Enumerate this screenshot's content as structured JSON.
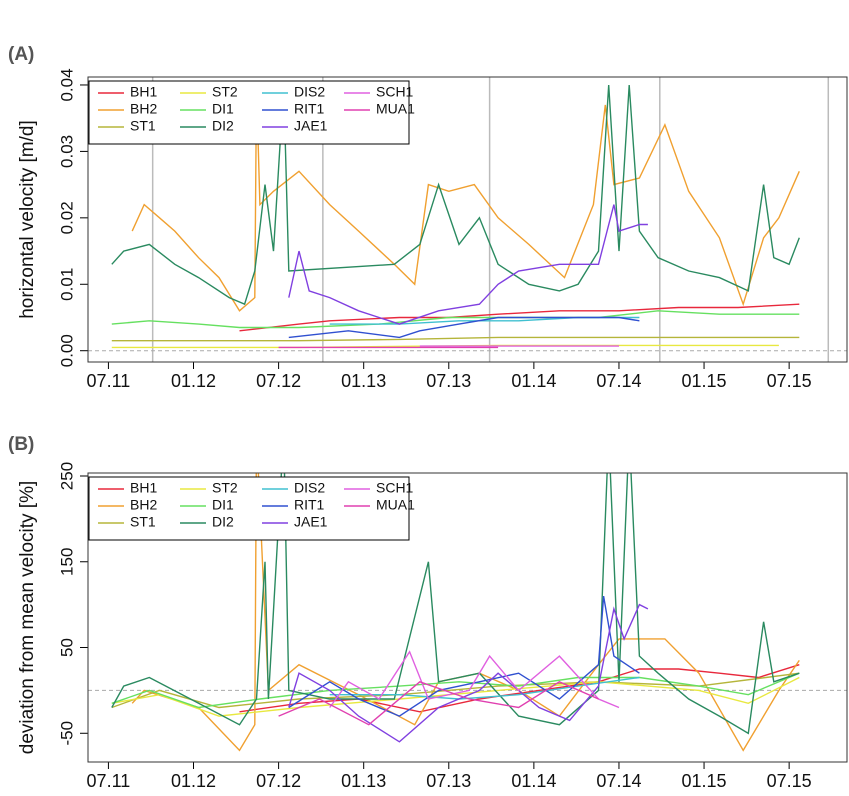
{
  "chart_data": [
    {
      "type": "line",
      "panel_label": "(A)",
      "y_label": "horizontal velocity [m/d]",
      "xlim": [
        2011.38,
        2015.84
      ],
      "ylim": [
        -0.0017,
        0.0412
      ],
      "xticks": [
        {
          "value": 2011.5,
          "label": "07.11"
        },
        {
          "value": 2012.0,
          "label": "01.12"
        },
        {
          "value": 2012.5,
          "label": "07.12"
        },
        {
          "value": 2013.0,
          "label": "01.13"
        },
        {
          "value": 2013.5,
          "label": "07.13"
        },
        {
          "value": 2014.0,
          "label": "01.14"
        },
        {
          "value": 2014.5,
          "label": "07.14"
        },
        {
          "value": 2015.0,
          "label": "01.15"
        },
        {
          "value": 2015.5,
          "label": "07.15"
        }
      ],
      "yticks": [
        {
          "value": 0,
          "label": "0.00"
        },
        0.01,
        0.02,
        0.03,
        0.04
      ],
      "vlines": [
        2011.76,
        2012.76,
        2013.74,
        2014.74,
        2015.73
      ],
      "zero_line": true,
      "legend": "topleft",
      "series": [
        {
          "name": "BH1",
          "color": "#e8283c",
          "x": [
            2012.27,
            2012.62,
            2012.8,
            2013.21,
            2013.5,
            2013.79,
            2014.15,
            2014.5,
            2014.85,
            2015.2,
            2015.56
          ],
          "values": [
            0.003,
            0.004,
            0.0045,
            0.005,
            0.005,
            0.0055,
            0.006,
            0.006,
            0.0065,
            0.0065,
            0.007
          ]
        },
        {
          "name": "BH2",
          "color": "#f0a030",
          "x": [
            2011.64,
            2011.71,
            2011.8,
            2011.89,
            2012.03,
            2012.15,
            2012.27,
            2012.36,
            2012.37,
            2012.39,
            2012.47,
            2012.62,
            2012.8,
            2012.97,
            2013.18,
            2013.3,
            2013.38,
            2013.5,
            2013.65,
            2013.79,
            2013.97,
            2014.18,
            2014.35,
            2014.42,
            2014.47,
            2014.62,
            2014.77,
            2014.91,
            2015.09,
            2015.23,
            2015.35,
            2015.44,
            2015.56
          ],
          "values": [
            0.018,
            0.022,
            0.02,
            0.018,
            0.014,
            0.011,
            0.006,
            0.008,
            0.04,
            0.022,
            0.024,
            0.027,
            0.022,
            0.018,
            0.013,
            0.01,
            0.025,
            0.024,
            0.025,
            0.02,
            0.016,
            0.011,
            0.022,
            0.037,
            0.025,
            0.026,
            0.034,
            0.024,
            0.017,
            0.007,
            0.017,
            0.02,
            0.027
          ]
        },
        {
          "name": "ST1",
          "color": "#b5b53a",
          "x": [
            2011.52,
            2011.8,
            2012.03,
            2012.62,
            2013.21,
            2013.79,
            2014.38,
            2014.97,
            2015.56
          ],
          "values": [
            0.0015,
            0.0015,
            0.0015,
            0.0015,
            0.0017,
            0.002,
            0.002,
            0.002,
            0.002
          ]
        },
        {
          "name": "ST2",
          "color": "#e8e840",
          "x": [
            2011.52,
            2012.62,
            2013.79,
            2015.44
          ],
          "values": [
            0.0005,
            0.0005,
            0.0008,
            0.0008
          ]
        },
        {
          "name": "DI1",
          "color": "#66e060",
          "x": [
            2011.52,
            2011.74,
            2012.03,
            2012.27,
            2012.62,
            2013.09,
            2013.5,
            2013.91,
            2014.38,
            2014.73,
            2015.09,
            2015.56
          ],
          "values": [
            0.004,
            0.0045,
            0.004,
            0.0035,
            0.0035,
            0.004,
            0.005,
            0.005,
            0.005,
            0.006,
            0.0055,
            0.0055
          ]
        },
        {
          "name": "DI2",
          "color": "#2a8a60",
          "x": [
            2011.52,
            2011.59,
            2011.74,
            2011.89,
            2012.03,
            2012.21,
            2012.3,
            2012.36,
            2012.42,
            2012.47,
            2012.53,
            2012.56,
            2013.18,
            2013.33,
            2013.44,
            2013.56,
            2013.68,
            2013.79,
            2013.97,
            2014.15,
            2014.26,
            2014.38,
            2014.44,
            2014.5,
            2014.56,
            2014.62,
            2014.73,
            2014.91,
            2015.09,
            2015.26,
            2015.35,
            2015.41,
            2015.5,
            2015.56
          ],
          "values": [
            0.013,
            0.015,
            0.016,
            0.013,
            0.011,
            0.008,
            0.007,
            0.012,
            0.025,
            0.015,
            0.04,
            0.012,
            0.013,
            0.016,
            0.025,
            0.016,
            0.02,
            0.013,
            0.01,
            0.009,
            0.01,
            0.015,
            0.04,
            0.015,
            0.04,
            0.018,
            0.014,
            0.012,
            0.011,
            0.009,
            0.025,
            0.014,
            0.013,
            0.017
          ]
        },
        {
          "name": "DIS2",
          "color": "#40c0d0",
          "x": [
            2012.8,
            2013.21,
            2013.56,
            2013.91,
            2014.26,
            2014.62
          ],
          "values": [
            0.004,
            0.004,
            0.0045,
            0.0045,
            0.005,
            0.005
          ]
        },
        {
          "name": "RIT1",
          "color": "#3050d0",
          "x": [
            2012.56,
            2012.91,
            2013.21,
            2013.33,
            2013.56,
            2013.79,
            2014.15,
            2014.5,
            2014.62
          ],
          "values": [
            0.002,
            0.003,
            0.002,
            0.003,
            0.004,
            0.005,
            0.005,
            0.005,
            0.0045
          ]
        },
        {
          "name": "JAE1",
          "color": "#8040e0",
          "x": [
            2012.56,
            2012.62,
            2012.68,
            2012.8,
            2012.97,
            2013.21,
            2013.44,
            2013.68,
            2013.79,
            2013.91,
            2014.15,
            2014.38,
            2014.47,
            2014.5,
            2014.62,
            2014.67
          ],
          "values": [
            0.008,
            0.015,
            0.009,
            0.008,
            0.006,
            0.004,
            0.006,
            0.007,
            0.01,
            0.012,
            0.013,
            0.013,
            0.022,
            0.018,
            0.019,
            0.019
          ]
        },
        {
          "name": "SCH1",
          "color": "#e060e0",
          "x": [
            2013.33,
            2013.79,
            2014.38,
            2014.5
          ],
          "values": [
            0.0007,
            0.0007,
            0.0007,
            0.0007
          ]
        },
        {
          "name": "MUA1",
          "color": "#e040b0",
          "x": [
            2012.5,
            2013.21,
            2013.79
          ],
          "values": [
            0.0005,
            0.0005,
            0.0005
          ]
        }
      ]
    },
    {
      "type": "line",
      "panel_label": "(B)",
      "y_label": "deviation from mean velocity [%]",
      "xlim": [
        2011.38,
        2015.84
      ],
      "ylim": [
        -83.5,
        253.5
      ],
      "xticks": [
        {
          "value": 2011.5,
          "label": "07.11"
        },
        {
          "value": 2012.0,
          "label": "01.12"
        },
        {
          "value": 2012.5,
          "label": "07.12"
        },
        {
          "value": 2013.0,
          "label": "01.13"
        },
        {
          "value": 2013.5,
          "label": "07.13"
        },
        {
          "value": 2014.0,
          "label": "01.14"
        },
        {
          "value": 2014.5,
          "label": "07.14"
        },
        {
          "value": 2015.0,
          "label": "01.15"
        },
        {
          "value": 2015.5,
          "label": "07.15"
        }
      ],
      "yticks": [
        -50,
        50,
        150,
        250
      ],
      "zero_line": true,
      "legend": "topleft",
      "series": [
        {
          "name": "BH1",
          "color": "#e8283c",
          "x": [
            2012.27,
            2012.62,
            2012.97,
            2013.33,
            2013.68,
            2014.03,
            2014.38,
            2014.62,
            2014.85,
            2015.09,
            2015.32,
            2015.56
          ],
          "values": [
            -25,
            -15,
            -10,
            -25,
            -10,
            0,
            10,
            25,
            25,
            20,
            15,
            30
          ]
        },
        {
          "name": "BH2",
          "color": "#f0a030",
          "x": [
            2011.64,
            2011.71,
            2012.03,
            2012.27,
            2012.36,
            2012.37,
            2012.44,
            2012.62,
            2012.97,
            2013.3,
            2013.44,
            2013.68,
            2013.91,
            2014.15,
            2014.38,
            2014.5,
            2014.77,
            2014.97,
            2015.23,
            2015.44,
            2015.56
          ],
          "values": [
            -15,
            0,
            -20,
            -70,
            -40,
            300,
            0,
            30,
            -5,
            -40,
            10,
            20,
            0,
            -30,
            30,
            60,
            60,
            20,
            -70,
            0,
            35
          ]
        },
        {
          "name": "ST1",
          "color": "#b5b53a",
          "x": [
            2011.52,
            2011.8,
            2012.15,
            2012.62,
            2013.21,
            2013.79,
            2014.38,
            2014.97,
            2015.56
          ],
          "values": [
            -20,
            0,
            -20,
            -10,
            -5,
            5,
            10,
            5,
            20
          ]
        },
        {
          "name": "ST2",
          "color": "#e8e840",
          "x": [
            2011.52,
            2011.8,
            2012.15,
            2012.62,
            2013.21,
            2013.79,
            2014.38,
            2014.97,
            2015.26,
            2015.56
          ],
          "values": [
            -15,
            -5,
            -30,
            -20,
            -10,
            0,
            10,
            0,
            -15,
            15
          ]
        },
        {
          "name": "DI1",
          "color": "#66e060",
          "x": [
            2011.52,
            2011.74,
            2012.03,
            2012.39,
            2012.8,
            2013.21,
            2013.56,
            2013.91,
            2014.26,
            2014.62,
            2014.97,
            2015.26,
            2015.56
          ],
          "values": [
            -15,
            0,
            -20,
            -10,
            0,
            5,
            10,
            5,
            15,
            15,
            5,
            -5,
            20
          ]
        },
        {
          "name": "DI2",
          "color": "#2a8a60",
          "x": [
            2011.52,
            2011.59,
            2011.74,
            2012.03,
            2012.27,
            2012.37,
            2012.42,
            2012.44,
            2012.53,
            2012.56,
            2012.8,
            2013.18,
            2013.38,
            2013.44,
            2013.68,
            2013.91,
            2014.15,
            2014.38,
            2014.44,
            2014.5,
            2014.56,
            2014.62,
            2014.73,
            2014.91,
            2015.09,
            2015.26,
            2015.35,
            2015.41,
            2015.56
          ],
          "values": [
            -20,
            5,
            15,
            -15,
            -40,
            -10,
            150,
            -10,
            300,
            0,
            -10,
            -10,
            150,
            10,
            20,
            -30,
            -40,
            0,
            300,
            10,
            300,
            40,
            20,
            -10,
            -30,
            -50,
            80,
            10,
            20
          ]
        },
        {
          "name": "DIS2",
          "color": "#40c0d0",
          "x": [
            2012.8,
            2013.21,
            2013.56,
            2013.91,
            2014.26,
            2014.62
          ],
          "values": [
            -5,
            -5,
            -10,
            -5,
            5,
            15
          ]
        },
        {
          "name": "RIT1",
          "color": "#3050d0",
          "x": [
            2012.56,
            2012.8,
            2012.97,
            2013.21,
            2013.44,
            2013.68,
            2013.91,
            2014.15,
            2014.38,
            2014.41,
            2014.47,
            2014.62
          ],
          "values": [
            -20,
            10,
            -10,
            -30,
            0,
            10,
            20,
            -10,
            30,
            110,
            40,
            20
          ]
        },
        {
          "name": "JAE1",
          "color": "#8040e0",
          "x": [
            2012.56,
            2012.62,
            2012.8,
            2012.97,
            2013.21,
            2013.44,
            2013.68,
            2013.79,
            2014.03,
            2014.21,
            2014.38,
            2014.47,
            2014.53,
            2014.62,
            2014.67
          ],
          "values": [
            -20,
            20,
            0,
            -30,
            -60,
            -20,
            0,
            20,
            -20,
            -35,
            5,
            95,
            60,
            100,
            95
          ]
        },
        {
          "name": "SCH1",
          "color": "#e060e0",
          "x": [
            2012.8,
            2012.91,
            2013.09,
            2013.27,
            2013.38,
            2013.62,
            2013.74,
            2013.91,
            2014.15,
            2014.38,
            2014.5
          ],
          "values": [
            -20,
            10,
            -10,
            45,
            -10,
            0,
            40,
            0,
            40,
            -10,
            -20
          ]
        },
        {
          "name": "MUA1",
          "color": "#e040b0",
          "x": [
            2012.5,
            2012.74,
            2013.03,
            2013.33,
            2013.62,
            2013.91,
            2014.15,
            2014.38
          ],
          "values": [
            -30,
            -10,
            -40,
            10,
            -10,
            -20,
            10,
            -10
          ]
        }
      ]
    }
  ]
}
